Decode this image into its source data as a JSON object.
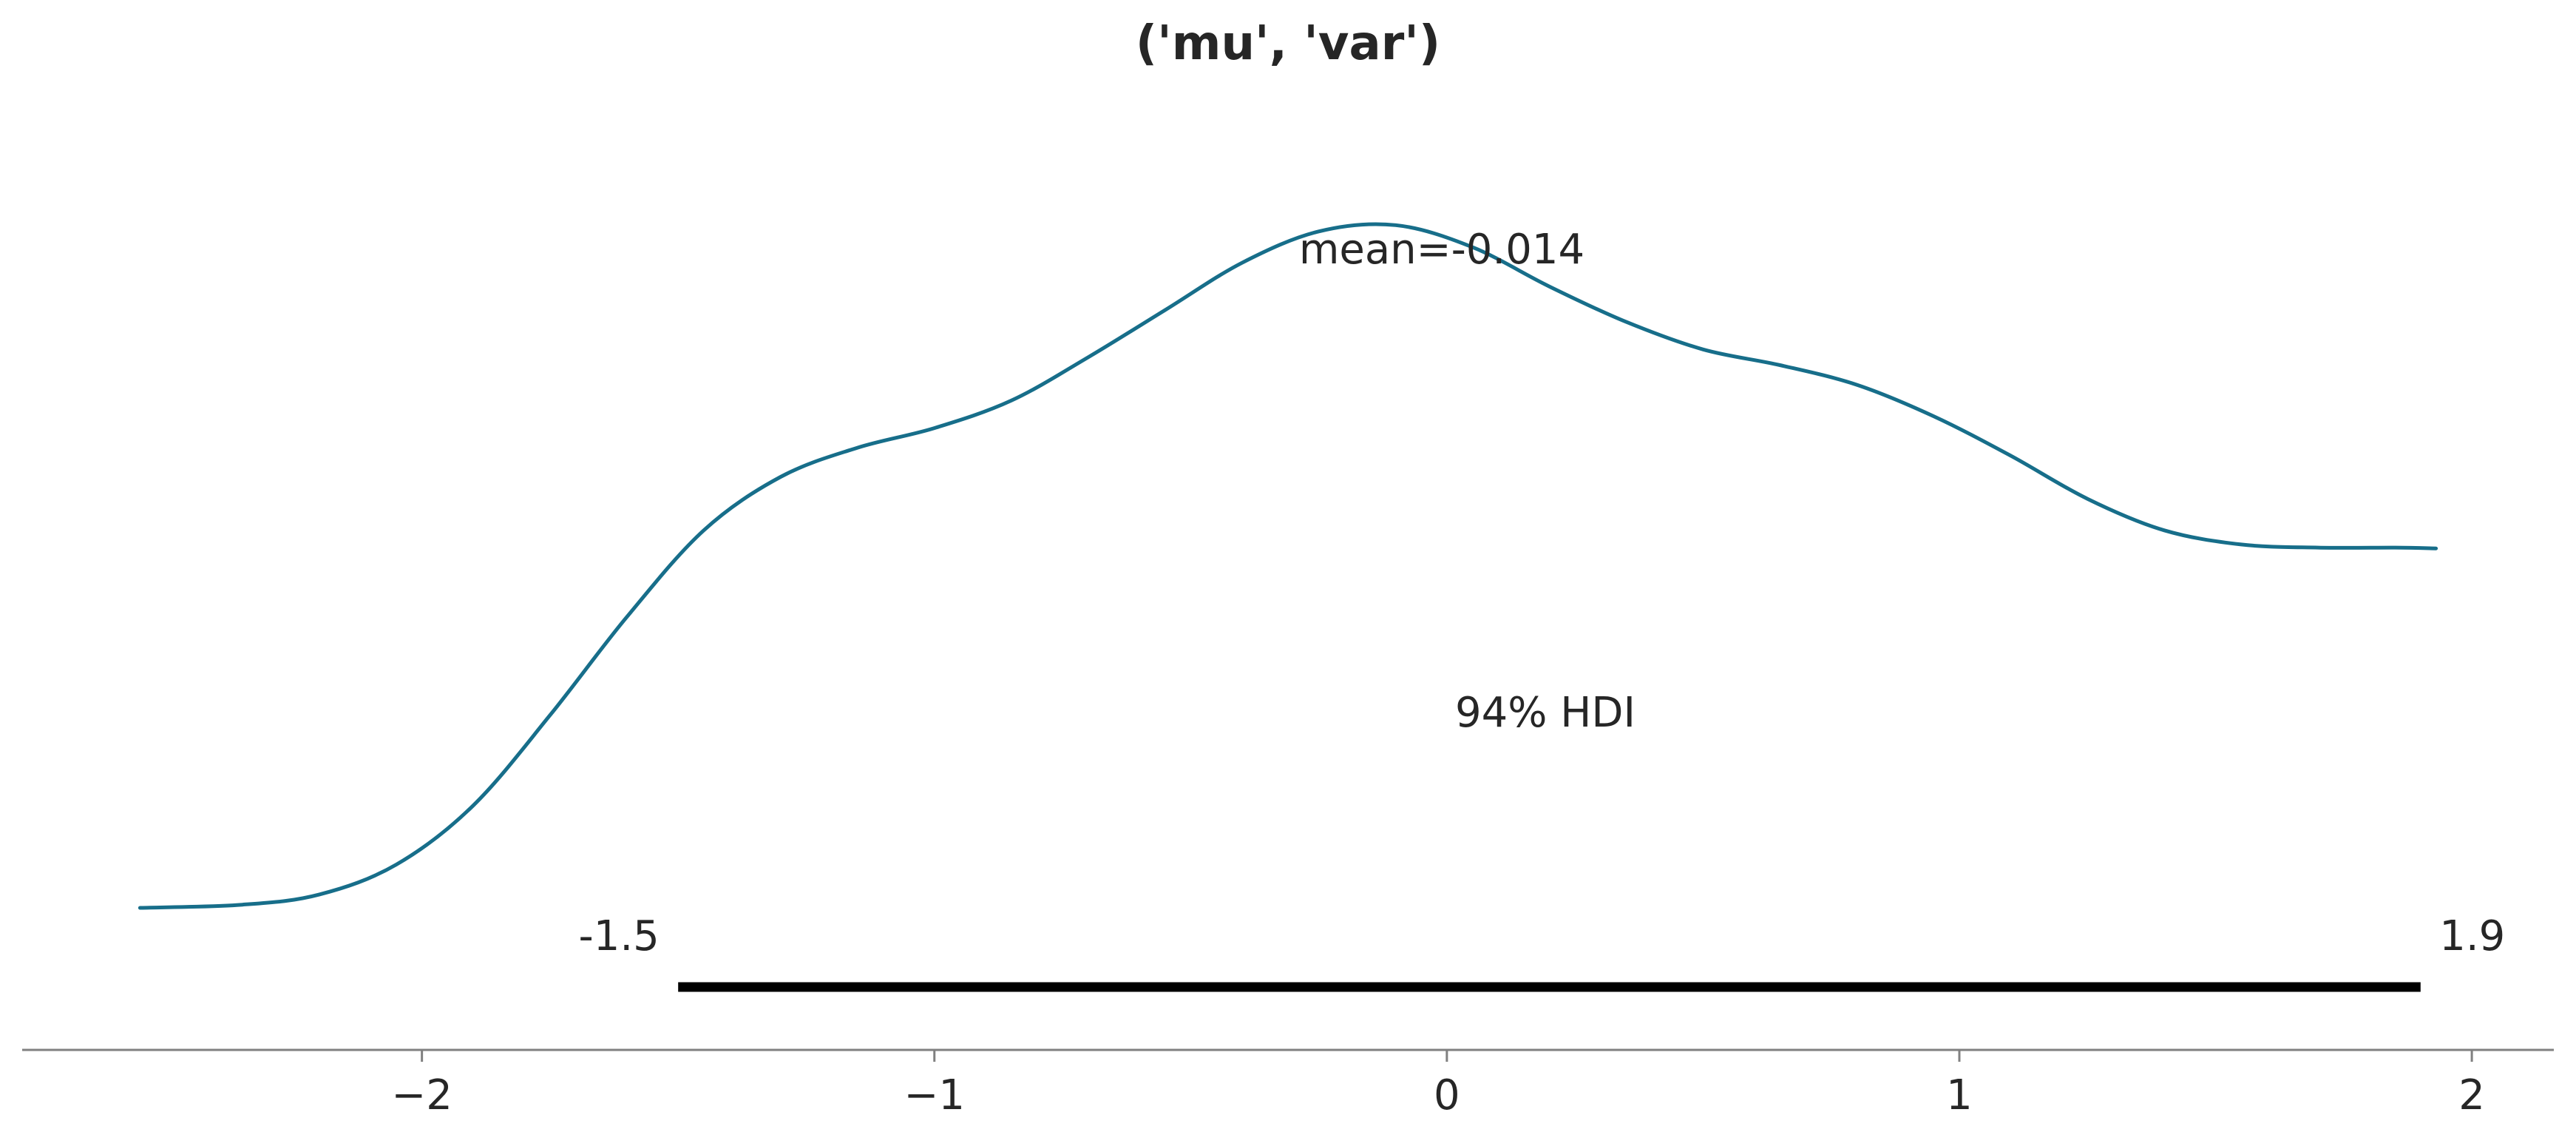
{
  "chart_data": {
    "type": "line",
    "title": "('mu', 'var')",
    "xlabel": "",
    "ylabel": "",
    "xlim": [
      -2.78,
      2.16
    ],
    "ylim": [
      0,
      1
    ],
    "grid": false,
    "x_ticks": [
      -2,
      -1,
      0,
      1,
      2
    ],
    "x_tick_labels": [
      "−2",
      "−1",
      "0",
      "1",
      "2"
    ],
    "series": [
      {
        "color": "#176e8a",
        "x": [
          -2.55,
          -2.35,
          -2.2,
          -2.05,
          -1.9,
          -1.75,
          -1.6,
          -1.45,
          -1.3,
          -1.15,
          -1.0,
          -0.85,
          -0.7,
          -0.55,
          -0.4,
          -0.25,
          -0.1,
          0.05,
          0.2,
          0.35,
          0.5,
          0.65,
          0.8,
          0.95,
          1.1,
          1.25,
          1.4,
          1.55,
          1.7,
          1.85,
          1.93
        ],
        "y": [
          0.0,
          0.004,
          0.017,
          0.055,
          0.13,
          0.245,
          0.37,
          0.48,
          0.548,
          0.585,
          0.61,
          0.645,
          0.7,
          0.76,
          0.82,
          0.86,
          0.868,
          0.84,
          0.79,
          0.745,
          0.71,
          0.69,
          0.665,
          0.625,
          0.575,
          0.52,
          0.48,
          0.462,
          0.458,
          0.458,
          0.457
        ]
      }
    ],
    "mean_label": "mean=-0.014",
    "hdi": {
      "label": "94% HDI",
      "lower": -1.5,
      "upper": 1.9,
      "lower_label": "-1.5",
      "upper_label": "1.9"
    }
  }
}
